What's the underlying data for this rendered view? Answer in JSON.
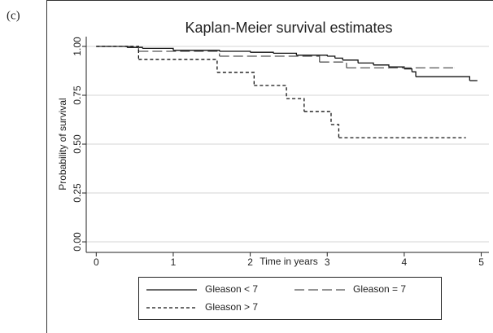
{
  "panel_label": "(c)",
  "chart_data": {
    "type": "step",
    "title": "Kaplan-Meier survival estimates",
    "x_label": "Time in years",
    "y_label": "Probability of survival",
    "xlim": [
      -0.13,
      5.1
    ],
    "ylim": [
      -0.054,
      1.05
    ],
    "xticks": [
      0,
      1,
      2,
      3,
      4,
      5
    ],
    "yticks": [
      {
        "value": 0,
        "label": "0.00"
      },
      {
        "value": 0.25,
        "label": "0.25"
      },
      {
        "value": 0.5,
        "label": "0.50"
      },
      {
        "value": 0.75,
        "label": "0.75"
      },
      {
        "value": 1,
        "label": "1.00"
      }
    ],
    "grid": true,
    "series": [
      {
        "name": "Gleason < 7",
        "color": "#111111",
        "linestyle": "solid",
        "x": [
          0,
          0.4,
          0.6,
          1.0,
          1.6,
          2.0,
          2.3,
          2.6,
          3.0,
          3.1,
          3.2,
          3.4,
          3.6,
          3.8,
          4.0,
          4.1,
          4.15,
          4.85,
          4.95
        ],
        "values": [
          1.0,
          0.995,
          0.99,
          0.98,
          0.975,
          0.97,
          0.965,
          0.955,
          0.95,
          0.94,
          0.93,
          0.915,
          0.905,
          0.895,
          0.885,
          0.87,
          0.845,
          0.825,
          0.825
        ]
      },
      {
        "name": "Gleason = 7",
        "color": "#555555",
        "linestyle": "long",
        "x": [
          0,
          0.55,
          1.6,
          2.9,
          3.25,
          4.65
        ],
        "values": [
          1.0,
          0.975,
          0.95,
          0.92,
          0.89,
          0.89
        ]
      },
      {
        "name": "Gleason > 7",
        "color": "#111111",
        "linestyle": "short",
        "x": [
          0,
          0.55,
          1.57,
          2.05,
          2.47,
          2.7,
          3.05,
          3.15,
          4.8
        ],
        "values": [
          1.0,
          0.933,
          0.867,
          0.8,
          0.733,
          0.667,
          0.6,
          0.533,
          0.533
        ]
      }
    ]
  }
}
